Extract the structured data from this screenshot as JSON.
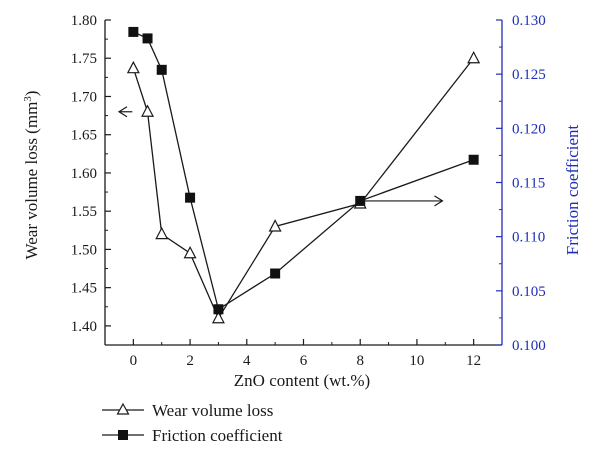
{
  "chart_data": {
    "type": "line",
    "xlabel": "ZnO content (wt.%)",
    "ylabel_left": "Wear volume loss (mm",
    "ylabel_left_sup": "3",
    "ylabel_left_close": ")",
    "ylabel_right": "Friction coefficient",
    "x_ticks": [
      "0",
      "2",
      "4",
      "6",
      "8",
      "10",
      "12"
    ],
    "y_left_ticks": [
      "1.40",
      "1.45",
      "1.50",
      "1.55",
      "1.60",
      "1.65",
      "1.70",
      "1.75",
      "1.80"
    ],
    "y_right_ticks": [
      "0.100",
      "0.105",
      "0.110",
      "0.115",
      "0.120",
      "0.125",
      "0.130"
    ],
    "xlim": [
      -1,
      13
    ],
    "ylim_left": [
      1.375,
      1.8
    ],
    "ylim_right": [
      0.1,
      0.13
    ],
    "series": [
      {
        "name": "Wear volume loss",
        "axis": "left",
        "marker": "open-triangle",
        "color": "#1a1a1a",
        "x": [
          0,
          0.5,
          1,
          2,
          3,
          5,
          8,
          12
        ],
        "values": [
          1.737,
          1.68,
          1.52,
          1.495,
          1.41,
          1.53,
          1.56,
          1.75
        ]
      },
      {
        "name": "Friction coefficient",
        "axis": "right",
        "marker": "filled-square",
        "color": "#1a1a1a",
        "x": [
          0,
          0.5,
          1,
          2,
          3,
          5,
          8,
          12
        ],
        "values": [
          0.1289,
          0.1283,
          0.1254,
          0.1136,
          0.1033,
          0.1066,
          0.1133,
          0.1171
        ]
      }
    ],
    "annotations": [
      {
        "type": "arrow",
        "direction": "left",
        "points_to": "left-axis",
        "at_x": 0,
        "at_y_left": 1.68
      },
      {
        "type": "arrow",
        "direction": "right",
        "points_to": "right-axis",
        "at_x": 8,
        "at_y_right": 0.1133
      }
    ],
    "grid": false,
    "legend_position": "bottom-left"
  }
}
